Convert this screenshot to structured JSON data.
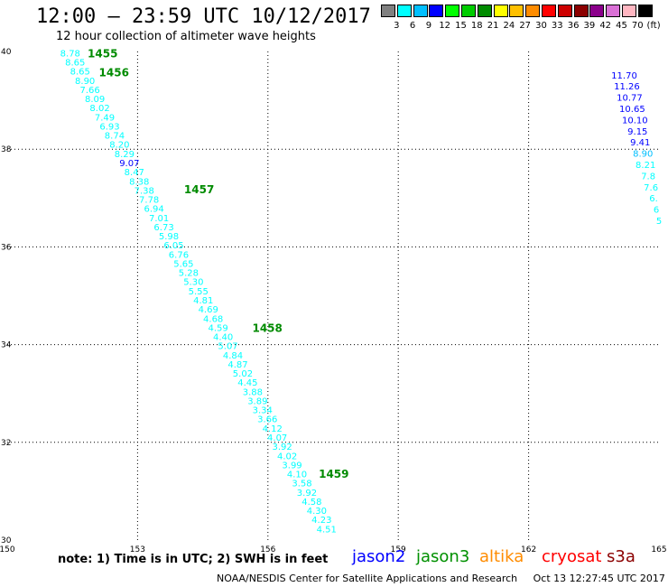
{
  "header": {
    "title": "12:00 – 23:59 UTC 10/12/2017",
    "subtitle": "12 hour collection of altimeter wave heights"
  },
  "colorbar": {
    "colors": [
      "#808080",
      "#00ffff",
      "#00bfff",
      "#0000ff",
      "#00ff00",
      "#00cd00",
      "#008b00",
      "#ffff00",
      "#ffc000",
      "#ff8c00",
      "#ff0000",
      "#cd0000",
      "#8b0000",
      "#8b008b",
      "#da70d6",
      "#ffb6c1",
      "#000000"
    ],
    "labels": [
      "3",
      "6",
      "9",
      "12",
      "15",
      "18",
      "21",
      "24",
      "27",
      "30",
      "33",
      "36",
      "39",
      "42",
      "45",
      "70",
      "(ft)"
    ]
  },
  "map": {
    "lon_range": [
      150,
      165
    ],
    "lat_range": [
      30,
      40
    ],
    "lon_ticks": [
      "150",
      "153",
      "156",
      "159",
      "162",
      "165"
    ],
    "lat_ticks": [
      "30",
      "32",
      "34",
      "36",
      "38",
      "40"
    ],
    "grid": "dotted"
  },
  "tracks": [
    {
      "mission": "jason3",
      "color": "#00ffff",
      "start": [
        151.45,
        39.9
      ],
      "end": [
        157.35,
        30.16
      ],
      "values": [
        "8.78",
        "8.65",
        "8.65",
        "8.90",
        "7.66",
        "8.09",
        "8.02",
        "7.49",
        "6.93",
        "8.74",
        "8.20",
        "8.29",
        "9.07",
        "8.47",
        "8.38",
        "7.38",
        "7.78",
        "6.94",
        "7.01",
        "6.73",
        "5.98",
        "6.05",
        "6.76",
        "5.65",
        "5.28",
        "5.30",
        "5.55",
        "4.81",
        "4.69",
        "4.68",
        "4.59",
        "4.40",
        "5.07",
        "4.84",
        "4.87",
        "5.02",
        "4.45",
        "3.88",
        "3.89",
        "3.34",
        "3.66",
        "4.12",
        "4.07",
        "3.92",
        "4.02",
        "3.99",
        "4.10",
        "3.58",
        "3.92",
        "4.58",
        "4.30",
        "4.23",
        "4.51"
      ],
      "value_colors": {
        "12": "#0000ff"
      },
      "times": [
        {
          "label": "1455",
          "lon": 151.85,
          "lat": 39.88
        },
        {
          "label": "1456",
          "lon": 152.11,
          "lat": 39.49
        },
        {
          "label": "1457",
          "lon": 154.07,
          "lat": 37.1
        },
        {
          "label": "1458",
          "lon": 155.64,
          "lat": 34.26
        },
        {
          "label": "1459",
          "lon": 157.17,
          "lat": 31.28
        }
      ]
    },
    {
      "mission": "jason2",
      "color": "#0000ff",
      "start": [
        164.2,
        39.45
      ],
      "end": [
        165.0,
        36.47
      ],
      "values": [
        "11.70",
        "11.26",
        "10.77",
        "10.65",
        "10.10",
        "9.15",
        "9.41",
        "8.90",
        "8.21",
        "7.8",
        "7.6",
        "6.",
        "6",
        "5"
      ],
      "value_colors": {
        "7": "#00bfff",
        "8": "#00ffff",
        "9": "#00ffff",
        "10": "#00ffff",
        "11": "#00ffff",
        "12": "#00ffff",
        "13": "#00ffff"
      },
      "times": []
    }
  ],
  "note": "note:  1) Time is in UTC;  2) SWH is in feet",
  "missions": [
    {
      "name": "jason2",
      "color": "#0000ff"
    },
    {
      "name": "jason3",
      "color": "#009000"
    },
    {
      "name": "altika",
      "color": "#ff8c00"
    },
    {
      "name": "cryosat",
      "color": "#ff0000"
    },
    {
      "name": "s3a",
      "color": "#8b0000"
    }
  ],
  "credit": "NOAA/NESDIS Center for Satellite Applications and Research     Oct 13 12:27:45 UTC 2017"
}
